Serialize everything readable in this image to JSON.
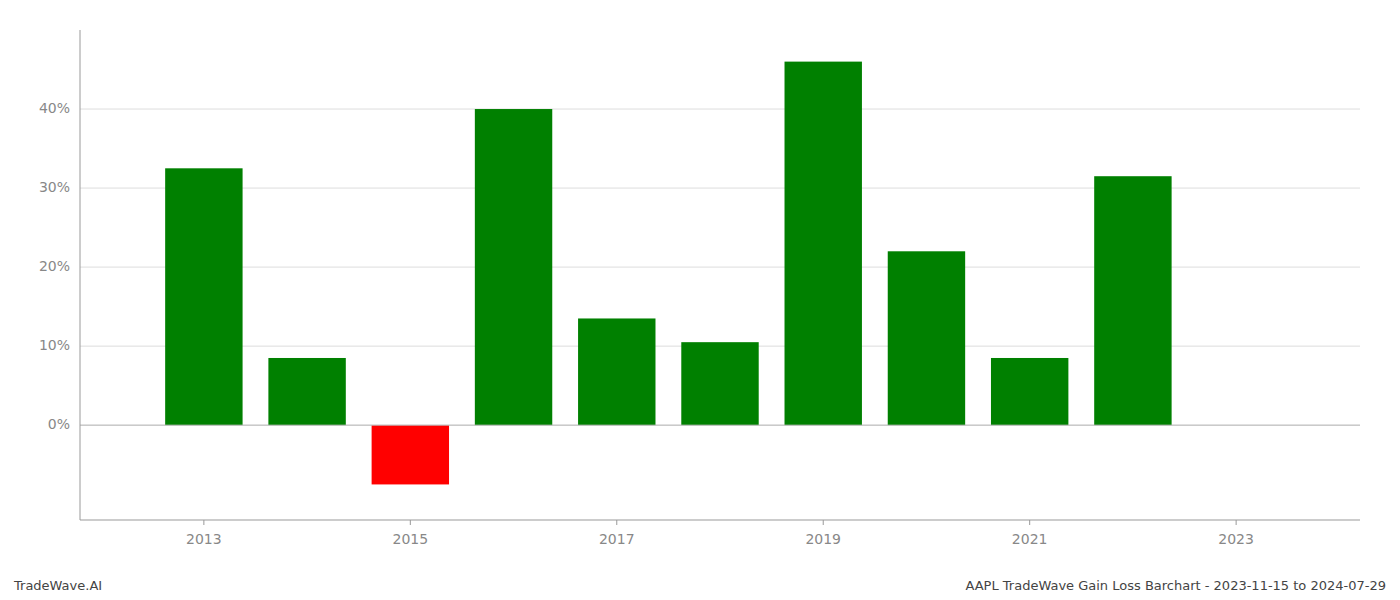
{
  "chart_data": {
    "type": "bar",
    "title": "AAPL TradeWave Gain Loss Barchart - 2023-11-15 to 2024-07-29",
    "annotations": [
      "TradeWave.AI"
    ],
    "x": [
      2013,
      2014,
      2015,
      2016,
      2017,
      2018,
      2019,
      2020,
      2021,
      2022
    ],
    "values": [
      32.5,
      8.5,
      -7.5,
      40.0,
      13.5,
      10.5,
      46.0,
      22.0,
      8.5,
      31.5
    ],
    "colors": [
      "#008000",
      "#008000",
      "#ff0000",
      "#008000",
      "#008000",
      "#008000",
      "#008000",
      "#008000",
      "#008000",
      "#008000"
    ],
    "xlim": [
      2011.8,
      2024.2
    ],
    "xticks": [
      2013,
      2015,
      2017,
      2019,
      2021,
      2023
    ],
    "ylim": [
      -12,
      50
    ],
    "yticks": [
      {
        "value": 0,
        "label": "0%"
      },
      {
        "value": 10,
        "label": "10%"
      },
      {
        "value": 20,
        "label": "20%"
      },
      {
        "value": 30,
        "label": "30%"
      },
      {
        "value": 40,
        "label": "40%"
      }
    ],
    "grid": true
  }
}
